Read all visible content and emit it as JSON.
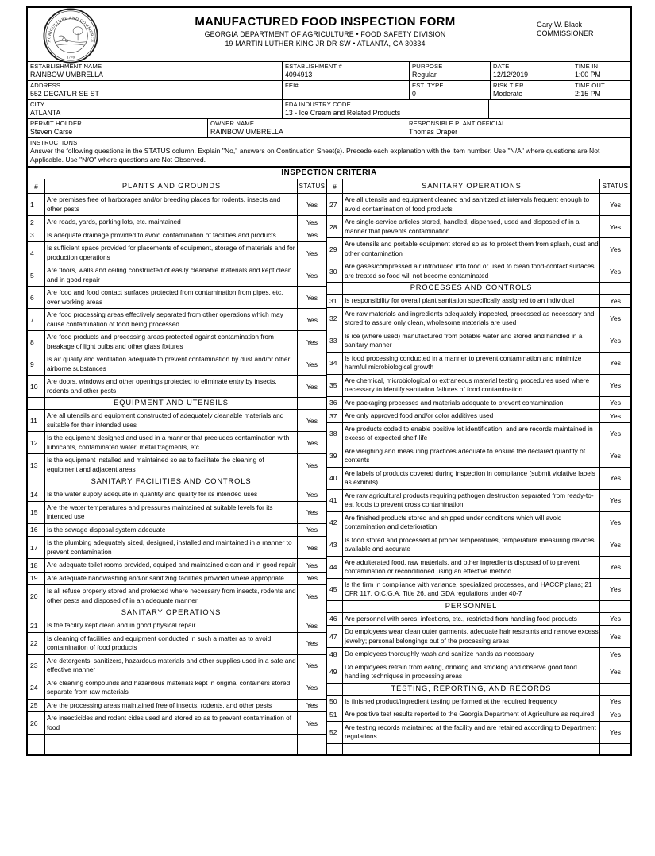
{
  "header": {
    "title": "MANUFACTURED FOOD INSPECTION FORM",
    "subtitle1": "GEORGIA DEPARTMENT OF AGRICULTURE • FOOD SAFETY DIVISION",
    "subtitle2": "19 MARTIN LUTHER KING JR DR SW • ATLANTA, GA 30334",
    "commissioner_name": "Gary W. Black",
    "commissioner_title": "COMMISSIONER",
    "seal": {
      "ring_text": "AGRICULTURE AND COMMERCE",
      "year": "1776"
    }
  },
  "fields": {
    "establishment_name": {
      "label": "ESTABLISHMENT NAME",
      "value": "RAINBOW UMBRELLA"
    },
    "establishment_num": {
      "label": "ESTABLISHMENT #",
      "value": "4094913"
    },
    "purpose": {
      "label": "PURPOSE",
      "value": "Regular"
    },
    "date": {
      "label": "DATE",
      "value": "12/12/2019"
    },
    "time_in": {
      "label": "TIME IN",
      "value": "1:00 PM"
    },
    "address": {
      "label": "ADDRESS",
      "value": "552 DECATUR SE ST"
    },
    "fei": {
      "label": "FEI#",
      "value": ""
    },
    "est_type": {
      "label": "EST. TYPE",
      "value": "0"
    },
    "risk_tier": {
      "label": "RISK TIER",
      "value": "Moderate"
    },
    "time_out": {
      "label": "TIME OUT",
      "value": "2:15 PM"
    },
    "city": {
      "label": "CITY",
      "value": "ATLANTA"
    },
    "fda_industry_code": {
      "label": "FDA INDUSTRY CODE",
      "value": "13 - Ice Cream and Related Products"
    },
    "permit_holder": {
      "label": "PERMIT HOLDER",
      "value": "Steven Carse"
    },
    "owner_name": {
      "label": "OWNER NAME",
      "value": "RAINBOW UMBRELLA"
    },
    "responsible_plant_official": {
      "label": "RESPONSIBLE PLANT OFFICIAL",
      "value": "Thomas Draper"
    }
  },
  "instructions": {
    "label": "INSTRUCTIONS",
    "text": "Answer the following questions in the STATUS column. Explain \"No,\" answers on Continuation Sheet(s). Precede each explanation with the item number. Use \"N/A\" where questions are Not Applicable. Use \"N/O\" where questions are Not Observed."
  },
  "criteria": {
    "title": "INSPECTION CRITERIA",
    "left": {
      "hash_label": "#",
      "section_title": "PLANTS AND GROUNDS",
      "status_label": "STATUS",
      "rows": [
        {
          "num": "1",
          "text": "Are premises free of harborages and/or breeding places for rodents, insects and other pests",
          "status": "Yes"
        },
        {
          "num": "2",
          "text": "Are roads, yards, parking lots, etc. maintained",
          "status": "Yes"
        },
        {
          "num": "3",
          "text": "Is adequate drainage provided to avoid contamination of facilities and products",
          "status": "Yes"
        },
        {
          "num": "4",
          "text": "Is sufficient space provided for placements of equipment, storage of materials and for production operations",
          "status": "Yes"
        },
        {
          "num": "5",
          "text": "Are floors, walls and ceiling constructed of easily cleanable materials and kept clean and in good repair",
          "status": "Yes"
        },
        {
          "num": "6",
          "text": "Are food and food contact surfaces protected from contamination from pipes, etc. over working areas",
          "status": "Yes"
        },
        {
          "num": "7",
          "text": "Are food processing areas effectively separated from other operations which may cause contamination of food being processed",
          "status": "Yes"
        },
        {
          "num": "8",
          "text": "Are food products and processing areas protected against contamination from breakage of light bulbs and other glass fixtures",
          "status": "Yes"
        },
        {
          "num": "9",
          "text": "Is air quality and ventilation adequate to prevent contamination by dust and/or other airborne substances",
          "status": "Yes"
        },
        {
          "num": "10",
          "text": "Are doors, windows and other openings protected to eliminate entry by insects, rodents and other pests",
          "status": "Yes"
        },
        {
          "section": "EQUIPMENT AND UTENSILS"
        },
        {
          "num": "11",
          "text": "Are all utensils and equipment constructed of adequately cleanable materials and suitable for their intended uses",
          "status": "Yes"
        },
        {
          "num": "12",
          "text": "Is the equipment designed and used in a manner that precludes contamination with lubricants, contaminated water, metal fragments, etc.",
          "status": "Yes"
        },
        {
          "num": "13",
          "text": "Is the equipment installed and maintained so as to facilitate the cleaning of equipment and adjacent areas",
          "status": "Yes"
        },
        {
          "section": "SANITARY FACILITIES AND CONTROLS"
        },
        {
          "num": "14",
          "text": "Is the water supply adequate in quantity and quality for its intended uses",
          "status": "Yes"
        },
        {
          "num": "15",
          "text": "Are the water temperatures and pressures maintained at suitable levels for its intended use",
          "status": "Yes"
        },
        {
          "num": "16",
          "text": "Is the sewage disposal system adequate",
          "status": "Yes"
        },
        {
          "num": "17",
          "text": "Is the plumbing adequately sized, designed, installed and maintained in a manner to prevent contamination",
          "status": "Yes"
        },
        {
          "num": "18",
          "text": "Are adequate toilet rooms provided, equiped and maintained clean and in good repair",
          "status": "Yes"
        },
        {
          "num": "19",
          "text": "Are adequate handwashing and/or sanitizing facilities provided where appropriate",
          "status": "Yes"
        },
        {
          "num": "20",
          "text": "Is all refuse properly stored and protected where necessary from insects, rodents and other pests and disposed of in an adequate manner",
          "status": "Yes"
        },
        {
          "section": "SANITARY OPERATIONS"
        },
        {
          "num": "21",
          "text": "Is the facility kept clean and in good physical repair",
          "status": "Yes"
        },
        {
          "num": "22",
          "text": "Is cleaning of facilities and equipment conducted in such a matter as to avoid contamination of food products",
          "status": "Yes"
        },
        {
          "num": "23",
          "text": "Are detergents, sanitizers, hazardous materials and other supplies used in a safe and effective manner",
          "status": "Yes"
        },
        {
          "num": "24",
          "text": "Are cleaning compounds and hazardous materials kept in original containers stored separate from raw materials",
          "status": "Yes"
        },
        {
          "num": "25",
          "text": "Are the processing areas maintained free of insects, rodents, and other pests",
          "status": "Yes"
        },
        {
          "num": "26",
          "text": "Are insecticides and rodent cides used and stored so as to prevent contamination of food",
          "status": "Yes"
        }
      ]
    },
    "right": {
      "hash_label": "#",
      "section_title": "SANITARY OPERATIONS",
      "status_label": "STATUS",
      "rows": [
        {
          "num": "27",
          "text": "Are all utensils and equipment cleaned and sanitized at intervals frequent enough to avoid contamination of food products",
          "status": "Yes"
        },
        {
          "num": "28",
          "text": "Are single-service articles stored, handled, dispensed, used and disposed of in a manner that prevents contamination",
          "status": "Yes"
        },
        {
          "num": "29",
          "text": "Are utensils and portable equipment stored so as to protect them from splash, dust and other contamination",
          "status": "Yes"
        },
        {
          "num": "30",
          "text": "Are gases/compressed air introduced into food or used to clean food-contact surfaces are treated so food will not become contaminated",
          "status": "Yes"
        },
        {
          "section": "PROCESSES AND CONTROLS"
        },
        {
          "num": "31",
          "text": "Is responsibility for overall plant sanitation specifically assigned to an individual",
          "status": "Yes"
        },
        {
          "num": "32",
          "text": "Are raw materials and ingredients adequately inspected, processed as necessary and stored to assure only clean, wholesome materials are used",
          "status": "Yes"
        },
        {
          "num": "33",
          "text": "Is ice (where used) manufactured from potable water and stored and handled in a sanitary manner",
          "status": "Yes"
        },
        {
          "num": "34",
          "text": "Is food processing conducted in a manner to prevent contamination and minimize harmful microbiological growth",
          "status": "Yes"
        },
        {
          "num": "35",
          "text": "Are chemical, microbiological or extraneous material testing procedures used where necessary to identify sanitation failures of food contamination",
          "status": "Yes"
        },
        {
          "num": "36",
          "text": "Are packaging processes and materials adequate to prevent contamination",
          "status": "Yes"
        },
        {
          "num": "37",
          "text": "Are only approved food and/or color additives used",
          "status": "Yes"
        },
        {
          "num": "38",
          "text": "Are products coded to enable positive lot identification, and are records maintained in excess of expected shelf-life",
          "status": "Yes"
        },
        {
          "num": "39",
          "text": "Are weighing and measuring practices adequate to ensure the declared quantity of contents",
          "status": "Yes"
        },
        {
          "num": "40",
          "text": "Are labels of products covered during inspection in compliance (submit violative labels as exhibits)",
          "status": "Yes"
        },
        {
          "num": "41",
          "text": "Are raw agricultural products requiring pathogen destruction separated from ready-to-eat foods to prevent cross contamination",
          "status": "Yes"
        },
        {
          "num": "42",
          "text": "Are finished products stored and shipped under conditions which will avoid contamination and deterioration",
          "status": "Yes"
        },
        {
          "num": "43",
          "text": "Is food stored and processed at proper temperatures, temperature measuring devices available and accurate",
          "status": "Yes"
        },
        {
          "num": "44",
          "text": "Are adulterated food, raw materials, and other ingredients disposed of to prevent contamination or reconditioned using an effective method",
          "status": "Yes"
        },
        {
          "num": "45",
          "text": "Is the firm in compliance with variance, specialized processes, and HACCP plans; 21 CFR 117, O.C.G.A. Title 26, and GDA regulations under 40-7",
          "status": "Yes"
        },
        {
          "section": "PERSONNEL"
        },
        {
          "num": "46",
          "text": "Are personnel with sores, infections, etc., restricted from handling food products",
          "status": "Yes"
        },
        {
          "num": "47",
          "text": "Do employees wear clean outer garments, adequate hair restraints and remove excess jewelry; personal belongings out of the processing areas",
          "status": "Yes"
        },
        {
          "num": "48",
          "text": "Do employees thoroughly wash and sanitize hands as necessary",
          "status": "Yes"
        },
        {
          "num": "49",
          "text": "Do employees refrain from eating, drinking and smoking and observe good food handling techniques in processing areas",
          "status": "Yes"
        },
        {
          "section": "TESTING, REPORTING, AND RECORDS"
        },
        {
          "num": "50",
          "text": "Is finished product/ingredient testing performed at the required frequency",
          "status": "Yes"
        },
        {
          "num": "51",
          "text": "Are positive test results reported to the Georgia Department of Agriculture as required",
          "status": "Yes"
        },
        {
          "num": "52",
          "text": "Are testing records maintained at the facility and are retained according to Department regulations",
          "status": "Yes"
        }
      ]
    }
  }
}
